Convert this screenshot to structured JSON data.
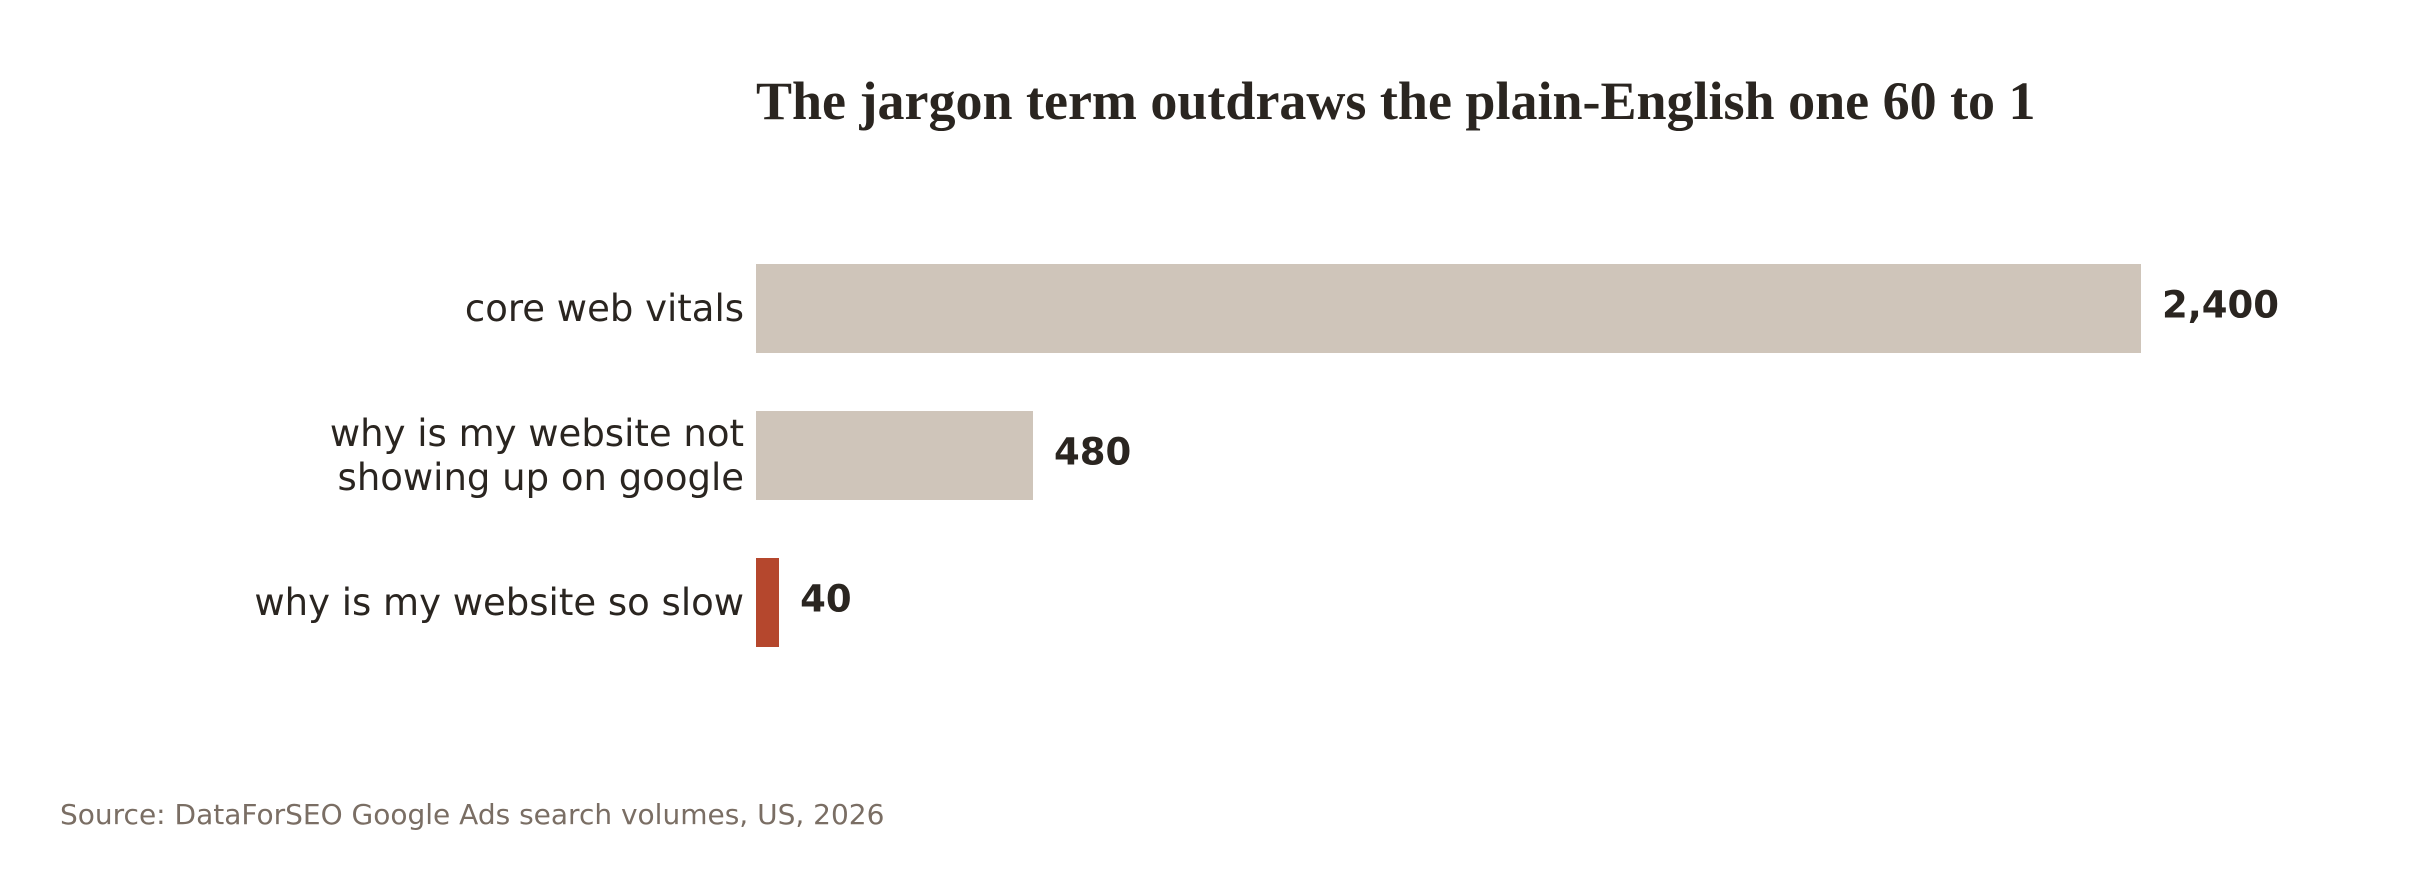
{
  "chart_data": {
    "type": "bar",
    "orientation": "horizontal",
    "title": "The jargon term outdraws the plain-English one 60 to 1",
    "categories": [
      "core web vitals",
      "why is my website not\nshowing up on google",
      "why is my website so slow"
    ],
    "values": [
      2400,
      480,
      40
    ],
    "value_labels": [
      "2,400",
      "480",
      "40"
    ],
    "colors": [
      "#cfc5ba",
      "#cfc5ba",
      "#b5472d"
    ],
    "source": "Source: DataForSEO Google Ads search volumes, US, 2026"
  }
}
